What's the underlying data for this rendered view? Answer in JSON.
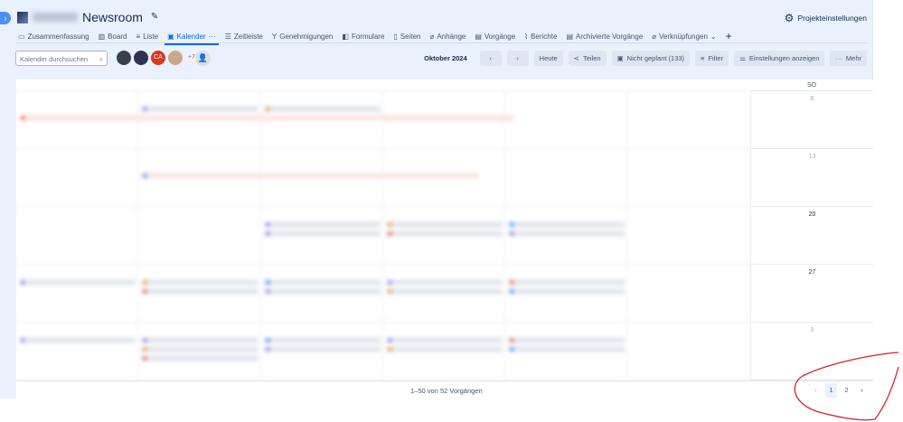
{
  "header": {
    "project_title": "Newsroom",
    "settings_label": "Projekteinstellungen"
  },
  "tabs": [
    {
      "label": "Zusammenfassung",
      "icon": "summary-icon"
    },
    {
      "label": "Board",
      "icon": "board-icon"
    },
    {
      "label": "Liste",
      "icon": "list-icon"
    },
    {
      "label": "Kalender",
      "icon": "calendar-icon",
      "active": true
    },
    {
      "label": "Zeitleiste",
      "icon": "timeline-icon"
    },
    {
      "label": "Genehmigungen",
      "icon": "approvals-icon"
    },
    {
      "label": "Formulare",
      "icon": "forms-icon"
    },
    {
      "label": "Seiten",
      "icon": "pages-icon"
    },
    {
      "label": "Anhänge",
      "icon": "attachment-icon"
    },
    {
      "label": "Vorgänge",
      "icon": "issues-icon"
    },
    {
      "label": "Berichte",
      "icon": "reports-icon"
    },
    {
      "label": "Archivierte Vorgänge",
      "icon": "archive-icon"
    },
    {
      "label": "Verknüpfungen",
      "icon": "link-icon"
    }
  ],
  "toolbar": {
    "search_placeholder": "Kalender durchsuchen",
    "avatar_initials": "CA",
    "avatar_more": "+7",
    "month": "Oktober 2024",
    "today": "Heute",
    "share": "Teilen",
    "unscheduled": "Nicht geplant (133)",
    "filter": "Filter",
    "view_settings": "Einstellungen anzeigen",
    "more": "Mehr"
  },
  "calendar": {
    "sunday_header": "SO",
    "sunday_dates": [
      "6",
      "13",
      "20",
      "27",
      "3"
    ]
  },
  "footer": {
    "count": "1–50 von 52 Vorgängen",
    "pages": [
      "1",
      "2"
    ],
    "current_page": "1"
  },
  "colors": {
    "accent": "#0c66e4",
    "annotation": "#d9202a"
  }
}
